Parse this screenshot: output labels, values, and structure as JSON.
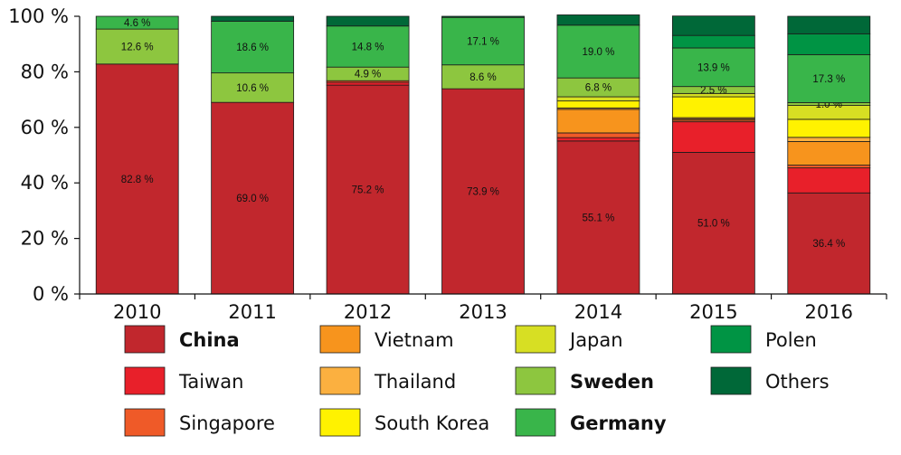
{
  "chart_data": {
    "type": "bar",
    "stacked": true,
    "categories": [
      "2010",
      "2011",
      "2012",
      "2013",
      "2014",
      "2015",
      "2016"
    ],
    "ylim": [
      0,
      100
    ],
    "yticks": [
      "0 %",
      "20 %",
      "40 %",
      "60 %",
      "80 %",
      "100 %"
    ],
    "series": [
      {
        "name": "China",
        "color": "#c1272d",
        "bold": true,
        "values": [
          82.8,
          69.0,
          75.2,
          73.9,
          55.1,
          51.0,
          36.4
        ],
        "labels": [
          "82.8 %",
          "69.0 %",
          "75.2 %",
          "73.9 %",
          "55.1 %",
          "51.0 %",
          "36.4 %"
        ]
      },
      {
        "name": "Taiwan",
        "color": "#e8202a",
        "bold": false,
        "values": [
          0,
          0,
          1.0,
          0,
          1.2,
          11.0,
          9.0
        ],
        "labels": [
          "",
          "",
          "",
          "",
          "",
          "",
          ""
        ]
      },
      {
        "name": "Singapore",
        "color": "#ef5a28",
        "bold": false,
        "values": [
          0,
          0,
          0.6,
          0,
          1.7,
          0.6,
          1.0
        ],
        "labels": [
          "",
          "",
          "",
          "",
          "",
          "",
          ""
        ]
      },
      {
        "name": "Vietnam",
        "color": "#f7941d",
        "bold": false,
        "values": [
          0,
          0,
          0,
          0,
          8.5,
          0.5,
          8.5
        ],
        "labels": [
          "",
          "",
          "",
          "",
          "",
          "",
          ""
        ]
      },
      {
        "name": "Thailand",
        "color": "#fbb040",
        "bold": false,
        "values": [
          0,
          0,
          0,
          0,
          0.5,
          0.4,
          1.5
        ],
        "labels": [
          "",
          "",
          "",
          "",
          "",
          "",
          ""
        ]
      },
      {
        "name": "South Korea",
        "color": "#fff200",
        "bold": false,
        "values": [
          0,
          0,
          0,
          0,
          2.5,
          7.5,
          6.5
        ],
        "labels": [
          "",
          "",
          "",
          "",
          "",
          "",
          ""
        ]
      },
      {
        "name": "Japan",
        "color": "#d7df23",
        "bold": false,
        "values": [
          0,
          0,
          0,
          0,
          1.5,
          1.2,
          5.0
        ],
        "labels": [
          "",
          "",
          "",
          "",
          "",
          "",
          ""
        ]
      },
      {
        "name": "Sweden",
        "color": "#8dc63f",
        "bold": true,
        "values": [
          12.6,
          10.6,
          4.9,
          8.6,
          6.8,
          2.5,
          1.0
        ],
        "labels": [
          "12.6 %",
          "10.6 %",
          "4.9 %",
          "8.6 %",
          "6.8 %",
          "2.5 %",
          "1.0 %"
        ]
      },
      {
        "name": "Germany",
        "color": "#39b54a",
        "bold": true,
        "values": [
          4.6,
          18.6,
          14.8,
          17.1,
          19.0,
          13.9,
          17.3
        ],
        "labels": [
          "4.6 %",
          "18.6 %",
          "14.8 %",
          "17.1 %",
          "19.0 %",
          "13.9 %",
          "17.3 %"
        ]
      },
      {
        "name": "Polen",
        "color": "#009444",
        "bold": false,
        "values": [
          0,
          0,
          0,
          0,
          0,
          4.5,
          7.5
        ],
        "labels": [
          "",
          "",
          "",
          "",
          "",
          "",
          ""
        ]
      },
      {
        "name": "Others",
        "color": "#006838",
        "bold": false,
        "values": [
          0,
          1.8,
          3.5,
          0.4,
          3.7,
          7.0,
          6.3
        ],
        "labels": [
          "",
          "",
          "",
          "",
          "",
          "",
          ""
        ]
      }
    ],
    "legend_order": [
      "China",
      "Vietnam",
      "Japan",
      "Polen",
      "Taiwan",
      "Thailand",
      "Sweden",
      "Others",
      "Singapore",
      "South Korea",
      "Germany"
    ],
    "legend_position": "bottom"
  }
}
